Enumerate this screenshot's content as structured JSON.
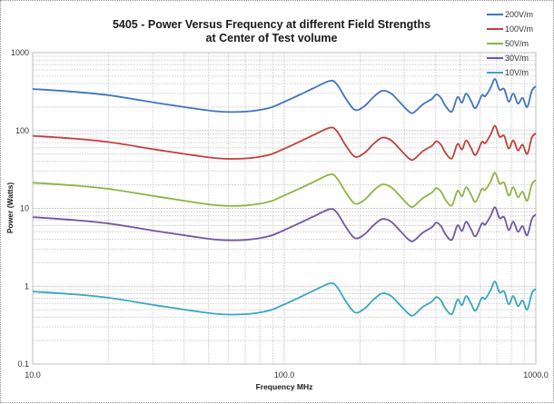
{
  "chart_data": {
    "type": "line",
    "title": [
      "5405 - Power Versus Frequency at different Field Strengths",
      "at Center of Test volume"
    ],
    "xlabel": "Frequency MHz",
    "ylabel": "Power (Watts)",
    "xscale": "log",
    "yscale": "log",
    "xlim": [
      10,
      1000
    ],
    "ylim": [
      0.1,
      1000
    ],
    "xticks": [
      10,
      100,
      1000
    ],
    "xtick_labels": [
      "10.0",
      "100.0",
      "1000.0"
    ],
    "yticks": [
      0.1,
      1,
      10,
      100,
      1000
    ],
    "ytick_labels": [
      "0.1",
      "1",
      "10",
      "100",
      "1000"
    ],
    "grid": true,
    "legend_position": "top-right",
    "x": [
      10.0,
      14.5,
      20.2,
      30.7,
      42.8,
      55.0,
      70.4,
      86.6,
      98.3,
      116,
      131,
      152,
      162,
      176,
      191,
      208,
      226,
      245,
      266,
      289,
      313,
      327,
      355,
      386,
      402,
      420,
      438,
      464,
      488,
      509,
      528,
      552,
      576,
      610,
      629,
      660,
      688,
      717,
      748,
      780,
      814,
      849,
      886,
      924,
      964,
      1000
    ],
    "series": [
      {
        "name": "200V/m",
        "color": "#3f74c0",
        "values": [
          342,
          315,
          283,
          228,
          194,
          175,
          175,
          194,
          228,
          291,
          351,
          435,
          391,
          254,
          184,
          205,
          268,
          324,
          299,
          228,
          175,
          170,
          216,
          254,
          291,
          262,
          205,
          175,
          268,
          228,
          299,
          241,
          194,
          283,
          275,
          351,
          459,
          333,
          342,
          234,
          299,
          222,
          262,
          200,
          324,
          370
        ]
      },
      {
        "name": "100V/m",
        "color": "#c0403c",
        "values": [
          85.5,
          78.8,
          70.8,
          57.0,
          48.5,
          43.8,
          43.8,
          48.5,
          57.0,
          72.8,
          87.8,
          108.8,
          97.8,
          63.5,
          46.0,
          51.3,
          67.0,
          81.0,
          74.8,
          57.0,
          43.8,
          42.5,
          54.0,
          63.5,
          72.8,
          65.5,
          51.3,
          43.8,
          67.0,
          57.0,
          74.8,
          60.3,
          48.5,
          70.8,
          68.8,
          87.8,
          114.8,
          83.3,
          85.5,
          58.5,
          74.8,
          55.5,
          65.5,
          50.0,
          81.0,
          92.5
        ]
      },
      {
        "name": "50V/m",
        "color": "#8db543",
        "values": [
          21.4,
          19.7,
          17.7,
          14.3,
          12.1,
          10.9,
          10.9,
          12.1,
          14.3,
          18.2,
          21.9,
          27.2,
          24.4,
          15.9,
          11.5,
          12.8,
          16.8,
          20.3,
          18.7,
          14.3,
          10.9,
          10.6,
          13.5,
          15.9,
          18.2,
          16.4,
          12.8,
          10.9,
          16.8,
          14.3,
          18.7,
          15.1,
          12.1,
          17.7,
          17.2,
          21.9,
          28.7,
          20.8,
          21.4,
          14.6,
          18.7,
          13.9,
          16.4,
          12.5,
          20.3,
          23.1
        ]
      },
      {
        "name": "30V/m",
        "color": "#7356a3",
        "values": [
          7.7,
          7.09,
          6.37,
          5.13,
          4.37,
          3.94,
          3.94,
          4.37,
          5.13,
          6.55,
          7.9,
          9.79,
          8.8,
          5.72,
          4.14,
          4.61,
          6.03,
          7.29,
          6.73,
          5.13,
          3.94,
          3.83,
          4.86,
          5.72,
          6.55,
          5.9,
          4.61,
          3.94,
          6.03,
          5.13,
          6.73,
          5.42,
          4.37,
          6.37,
          6.19,
          7.9,
          10.33,
          7.49,
          7.7,
          5.27,
          6.73,
          5.0,
          5.9,
          4.5,
          7.29,
          8.33
        ]
      },
      {
        "name": "10V/m",
        "color": "#38a6c4",
        "values": [
          0.855,
          0.788,
          0.708,
          0.57,
          0.485,
          0.438,
          0.438,
          0.485,
          0.57,
          0.728,
          0.878,
          1.088,
          0.978,
          0.635,
          0.46,
          0.513,
          0.67,
          0.81,
          0.748,
          0.57,
          0.438,
          0.425,
          0.54,
          0.635,
          0.728,
          0.655,
          0.513,
          0.438,
          0.67,
          0.57,
          0.748,
          0.603,
          0.485,
          0.708,
          0.688,
          0.878,
          1.148,
          0.833,
          0.855,
          0.585,
          0.748,
          0.555,
          0.655,
          0.5,
          0.81,
          0.925
        ]
      }
    ]
  }
}
